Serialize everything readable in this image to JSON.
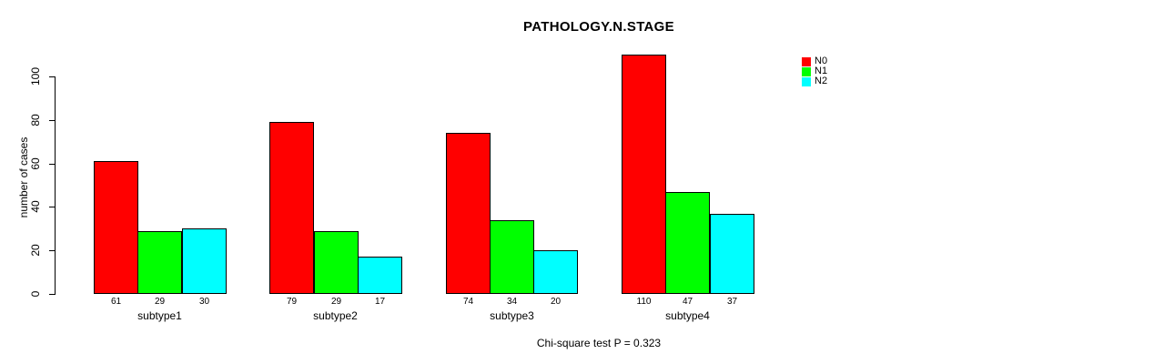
{
  "chart_data": {
    "type": "bar",
    "title": "PATHOLOGY.N.STAGE",
    "ylabel": "number of cases",
    "xlabel": "",
    "footer": "Chi-square test P = 0.323",
    "categories": [
      "subtype1",
      "subtype2",
      "subtype3",
      "subtype4"
    ],
    "series": [
      {
        "name": "N0",
        "color": "#ff0000",
        "values": [
          61,
          79,
          74,
          110
        ]
      },
      {
        "name": "N1",
        "color": "#00ff00",
        "values": [
          29,
          29,
          34,
          47
        ]
      },
      {
        "name": "N2",
        "color": "#00ffff",
        "values": [
          30,
          17,
          20,
          37
        ]
      }
    ],
    "yticks": [
      0,
      20,
      40,
      60,
      80,
      100
    ],
    "ylim": [
      0,
      110
    ],
    "grid": false,
    "legend_position": "topright",
    "bar_value_labels": true,
    "axis_color": "#000000",
    "background_color": "#ffffff"
  }
}
